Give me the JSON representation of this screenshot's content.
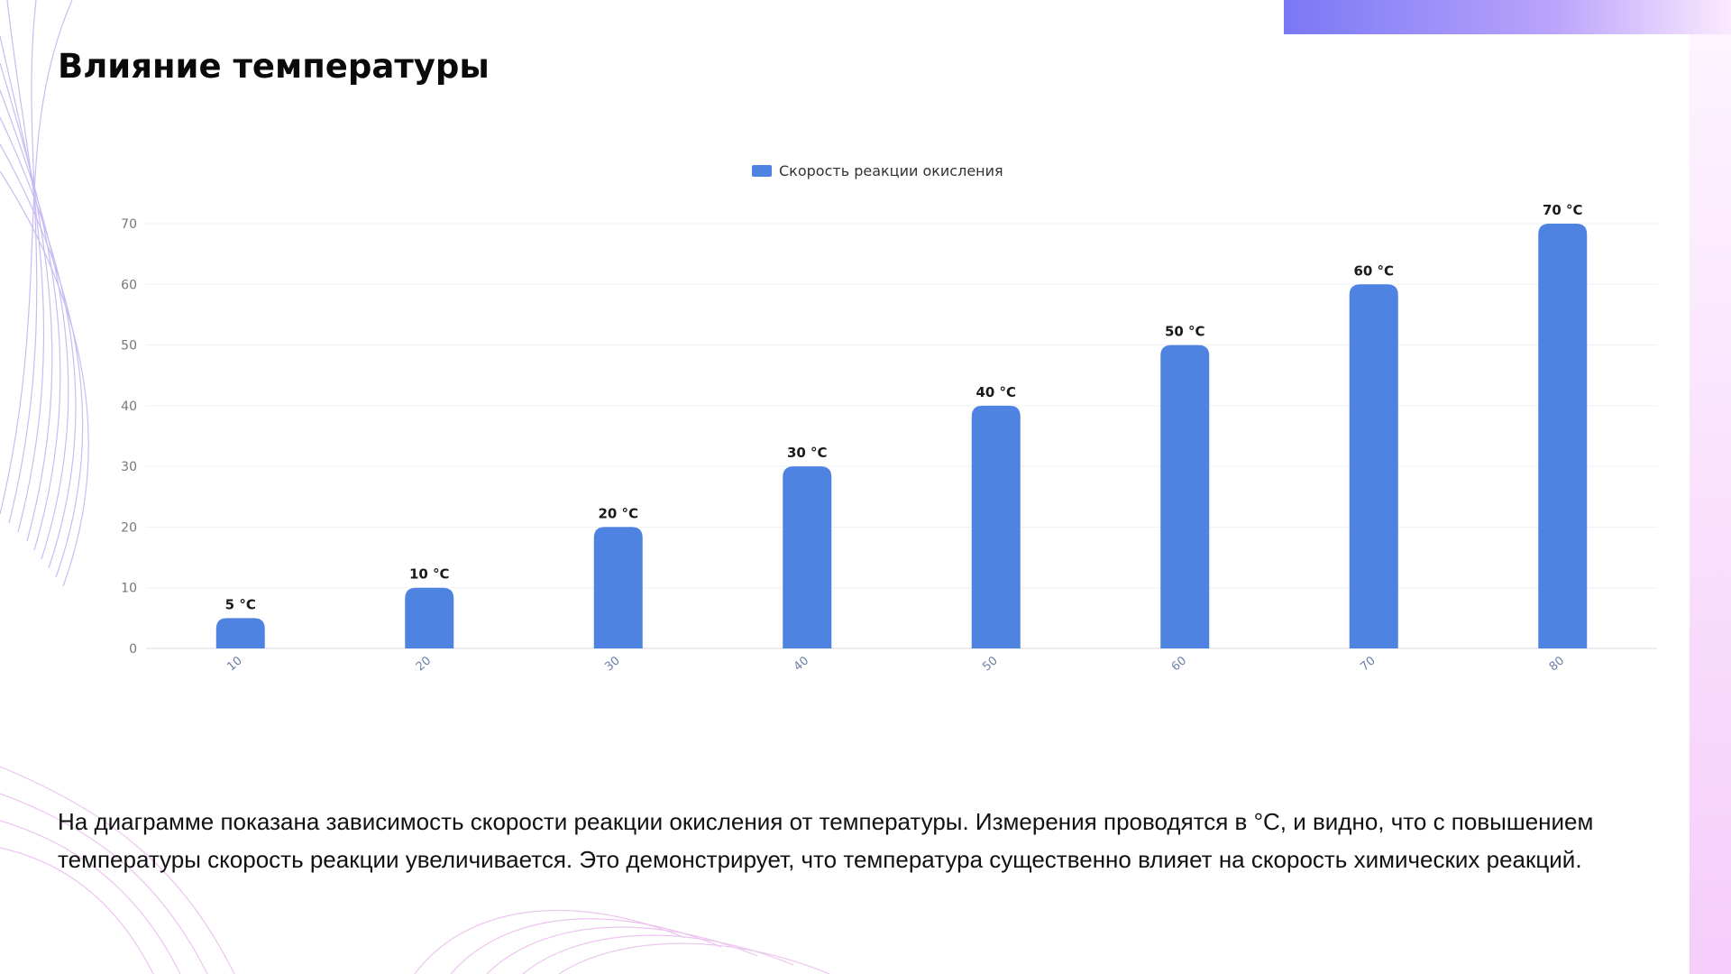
{
  "slide": {
    "title": "Влияние температуры",
    "description": "На диаграмме показана зависимость скорости реакции окисления от температуры. Измерения проводятся в °C, и видно, что с повышением температуры скорость реакции увеличивается. Это демонстрирует, что температура существенно влияет на скорость химических реакций."
  },
  "colors": {
    "bar": "#4f83e2",
    "accent_gradient_start": "#7b7bf8",
    "accent_gradient_end": "#f5d6ff",
    "decor_lines": "#c9b6f5"
  },
  "chart_data": {
    "type": "bar",
    "title": "",
    "xlabel": "",
    "ylabel": "",
    "categories": [
      "10",
      "20",
      "30",
      "40",
      "50",
      "60",
      "70",
      "80"
    ],
    "series": [
      {
        "name": "Скорость реакции окисления",
        "values": [
          5,
          10,
          20,
          30,
          40,
          50,
          60,
          70
        ],
        "data_labels": [
          "5 °C",
          "10 °C",
          "20 °C",
          "30 °C",
          "40 °C",
          "50 °C",
          "60 °C",
          "70 °C"
        ]
      }
    ],
    "ylim": [
      0,
      70
    ],
    "yticks": [
      "0",
      "10",
      "20",
      "30",
      "40",
      "50",
      "60",
      "70"
    ],
    "grid": true,
    "legend_position": "top-center"
  }
}
